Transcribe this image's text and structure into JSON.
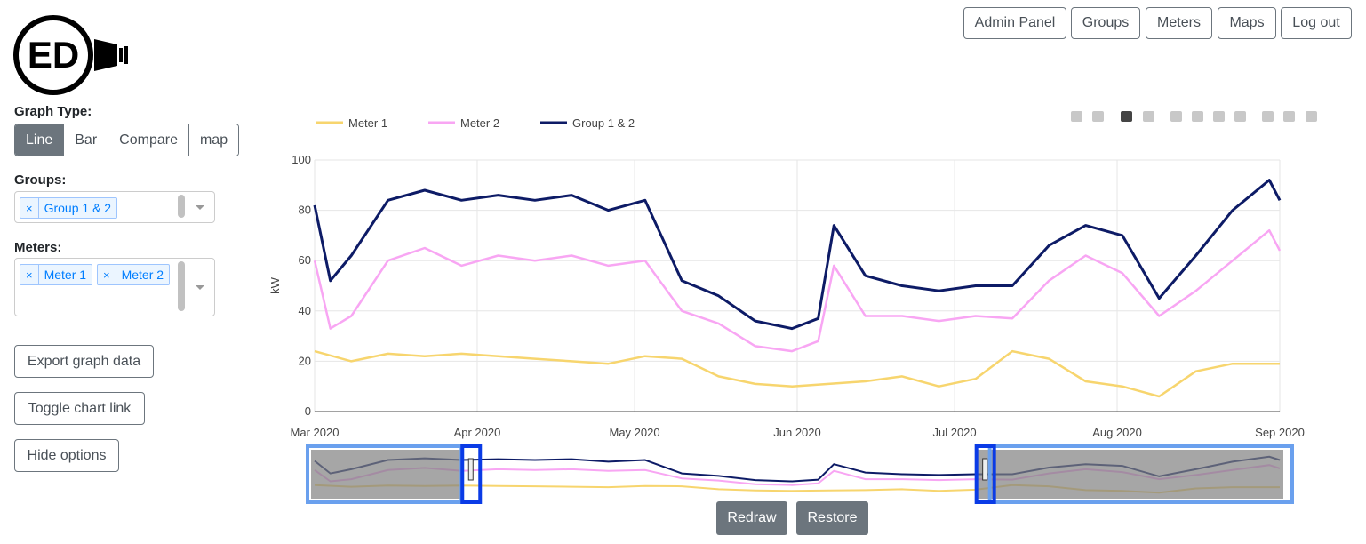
{
  "logo": {
    "text": "ED"
  },
  "nav": {
    "admin_panel": "Admin Panel",
    "groups": "Groups",
    "meters": "Meters",
    "maps": "Maps",
    "log_out": "Log out"
  },
  "graph_type": {
    "label": "Graph Type:",
    "options": [
      "Line",
      "Bar",
      "Compare",
      "map"
    ],
    "selected": "Line"
  },
  "groups": {
    "label": "Groups:",
    "selected": [
      "Group 1 & 2"
    ],
    "remove_glyph": "×"
  },
  "meters": {
    "label": "Meters:",
    "selected": [
      "Meter 1",
      "Meter 2"
    ],
    "remove_glyph": "×"
  },
  "actions": {
    "export": "Export graph data",
    "toggle_link": "Toggle chart link",
    "hide_options": "Hide options"
  },
  "range_buttons": {
    "redraw": "Redraw",
    "restore": "Restore"
  },
  "colors": {
    "meter1": "#f7d56e",
    "meter2": "#f8a6f3",
    "group": "#0d1b66",
    "active_btn": "#6c757d",
    "modebar_active": "#1f9bf0",
    "range_window": "#6aa0ee"
  },
  "modebar_icons": [
    "camera-icon",
    "save-icon",
    "zoom-icon",
    "pan-icon",
    "zoom-in-icon",
    "zoom-out-icon",
    "autoscale-icon",
    "home-icon",
    "spike-lines-icon",
    "hover-closest-icon",
    "hover-compare-icon",
    "plotly-logo-icon"
  ],
  "chart_data": {
    "type": "line",
    "ylabel": "kW",
    "ylim": [
      0,
      100
    ],
    "yticks": [
      0,
      20,
      40,
      60,
      80,
      100
    ],
    "xticks": [
      "Mar 2020",
      "Apr 2020",
      "May 2020",
      "Jun 2020",
      "Jul 2020",
      "Aug 2020",
      "Sep 2020"
    ],
    "x_range": [
      "2020-03-01",
      "2020-09-01"
    ],
    "grid": true,
    "legend_position": "top-left",
    "range_slider": {
      "visible_from": "2020-03-29",
      "visible_to": "2020-07-05"
    },
    "series": [
      {
        "name": "Meter 1",
        "color": "#f7d56e",
        "x": [
          "2020-03-01",
          "2020-03-08",
          "2020-03-15",
          "2020-03-22",
          "2020-03-29",
          "2020-04-05",
          "2020-04-12",
          "2020-04-19",
          "2020-04-26",
          "2020-05-03",
          "2020-05-10",
          "2020-05-17",
          "2020-05-24",
          "2020-05-31",
          "2020-06-07",
          "2020-06-14",
          "2020-06-21",
          "2020-06-28",
          "2020-07-05",
          "2020-07-12",
          "2020-07-19",
          "2020-07-26",
          "2020-08-02",
          "2020-08-09",
          "2020-08-16",
          "2020-08-23",
          "2020-09-01"
        ],
        "y": [
          24,
          20,
          23,
          22,
          23,
          22,
          21,
          20,
          19,
          22,
          21,
          14,
          11,
          10,
          11,
          12,
          14,
          10,
          13,
          24,
          21,
          12,
          10,
          6,
          16,
          19,
          19
        ]
      },
      {
        "name": "Meter 2",
        "color": "#f8a6f3",
        "x": [
          "2020-03-01",
          "2020-03-04",
          "2020-03-08",
          "2020-03-15",
          "2020-03-22",
          "2020-03-29",
          "2020-04-05",
          "2020-04-12",
          "2020-04-19",
          "2020-04-26",
          "2020-05-03",
          "2020-05-10",
          "2020-05-17",
          "2020-05-24",
          "2020-05-31",
          "2020-06-05",
          "2020-06-08",
          "2020-06-14",
          "2020-06-21",
          "2020-06-28",
          "2020-07-05",
          "2020-07-12",
          "2020-07-19",
          "2020-07-26",
          "2020-08-02",
          "2020-08-09",
          "2020-08-16",
          "2020-08-23",
          "2020-08-30",
          "2020-09-01"
        ],
        "y": [
          60,
          33,
          38,
          60,
          65,
          58,
          62,
          60,
          62,
          58,
          60,
          40,
          35,
          26,
          24,
          28,
          58,
          38,
          38,
          36,
          38,
          37,
          52,
          62,
          55,
          38,
          48,
          60,
          72,
          64
        ]
      },
      {
        "name": "Group 1 & 2",
        "color": "#0d1b66",
        "x": [
          "2020-03-01",
          "2020-03-04",
          "2020-03-08",
          "2020-03-15",
          "2020-03-22",
          "2020-03-29",
          "2020-04-05",
          "2020-04-12",
          "2020-04-19",
          "2020-04-26",
          "2020-05-03",
          "2020-05-10",
          "2020-05-17",
          "2020-05-24",
          "2020-05-31",
          "2020-06-05",
          "2020-06-08",
          "2020-06-14",
          "2020-06-21",
          "2020-06-28",
          "2020-07-05",
          "2020-07-12",
          "2020-07-19",
          "2020-07-26",
          "2020-08-02",
          "2020-08-09",
          "2020-08-16",
          "2020-08-23",
          "2020-08-30",
          "2020-09-01"
        ],
        "y": [
          82,
          52,
          62,
          84,
          88,
          84,
          86,
          84,
          86,
          80,
          84,
          52,
          46,
          36,
          33,
          37,
          74,
          54,
          50,
          48,
          50,
          50,
          66,
          74,
          70,
          45,
          62,
          80,
          92,
          84
        ]
      }
    ]
  }
}
